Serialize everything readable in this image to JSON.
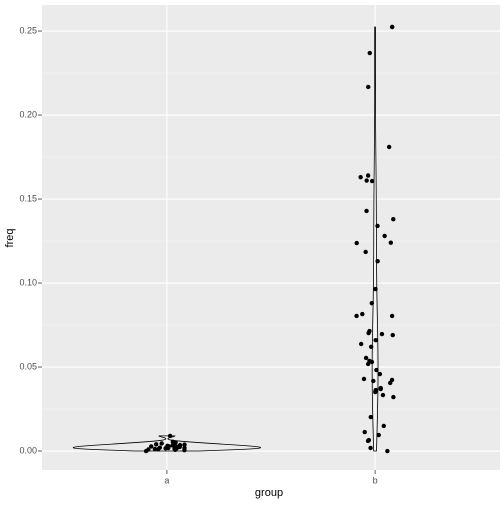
{
  "chart_data": {
    "type": "violin",
    "x_label": "group",
    "y_label": "freq",
    "categories": [
      "a",
      "b"
    ],
    "values": [
      [
        0.0,
        0.0005,
        0.001,
        0.0012,
        0.0015,
        0.0018,
        0.002,
        0.0022,
        0.0025,
        0.0028,
        0.003,
        0.0033,
        0.0035,
        0.004,
        0.0045,
        0.005,
        0.0007,
        0.0009,
        0.0013,
        0.0016,
        0.0019,
        0.0024,
        0.0027,
        0.0031,
        0.0038,
        0.0042,
        0.0055,
        0.009
      ],
      [
        0.2524,
        0.2524,
        0.2369,
        0.2167,
        0.181,
        0.164,
        0.163,
        0.161,
        0.1607,
        0.1429,
        0.138,
        0.134,
        0.128,
        0.124,
        0.1238,
        0.1185,
        0.113,
        0.0964,
        0.088,
        0.0815,
        0.0804,
        0.0804,
        0.0714,
        0.0702,
        0.0696,
        0.069,
        0.066,
        0.0637,
        0.062,
        0.0554,
        0.0536,
        0.053,
        0.0518,
        0.0482,
        0.0458,
        0.0429,
        0.0423,
        0.0417,
        0.0405,
        0.0375,
        0.0369,
        0.0363,
        0.0351,
        0.0333,
        0.0321,
        0.0202,
        0.0149,
        0.0113,
        0.0095,
        0.0065,
        0.006,
        0.0018,
        0.0
      ]
    ],
    "color": "#000000",
    "ylim": [
      -0.0113,
      0.2655
    ],
    "yticks": [
      {
        "value": 0,
        "label": "0.00"
      },
      {
        "value": 0.05,
        "label": "0.05"
      },
      {
        "value": 0.1,
        "label": "0.10"
      },
      {
        "value": 0.15,
        "label": "0.15"
      },
      {
        "value": 0.2,
        "label": "0.20"
      },
      {
        "value": 0.25,
        "label": "0.25"
      }
    ],
    "grid": true
  }
}
